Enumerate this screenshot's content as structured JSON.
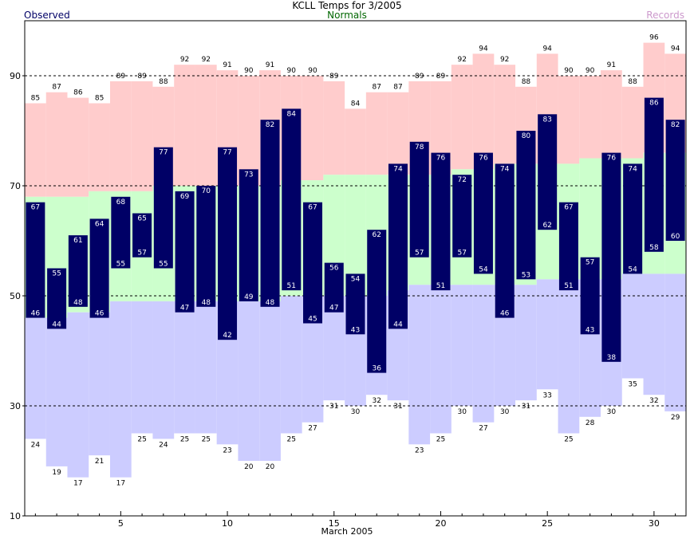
{
  "header": {
    "title": "KCLL Temps for 3/2005",
    "observed_label": "Observed",
    "normals_label": "Normals",
    "records_label": "Records"
  },
  "colors": {
    "observed": "#000066",
    "observed_text": "#ffffff",
    "record_band": "#ffcccc",
    "normal_band": "#ccffcc",
    "record_low_band": "#ccccff",
    "observed_label": "#000066",
    "normals_label": "#006600",
    "records_label": "#cc99cc"
  },
  "chart_data": {
    "type": "bar",
    "title": "KCLL Temps for 3/2005",
    "xlabel": "March 2005",
    "ylabel": "",
    "ylim": [
      10,
      100
    ],
    "xlim": [
      0.5,
      31.5
    ],
    "y_ticks": [
      10,
      30,
      50,
      70,
      90
    ],
    "y_gridlines": [
      30,
      50,
      70,
      90
    ],
    "x_ticks": [
      5,
      10,
      15,
      20,
      25,
      30
    ],
    "days": [
      1,
      2,
      3,
      4,
      5,
      6,
      7,
      8,
      9,
      10,
      11,
      12,
      13,
      14,
      15,
      16,
      17,
      18,
      19,
      20,
      21,
      22,
      23,
      24,
      25,
      26,
      27,
      28,
      29,
      30,
      31
    ],
    "series": [
      {
        "name": "Records",
        "high": [
          85,
          87,
          86,
          85,
          89,
          89,
          88,
          92,
          92,
          91,
          90,
          91,
          90,
          90,
          89,
          84,
          87,
          87,
          89,
          89,
          92,
          94,
          92,
          88,
          94,
          90,
          90,
          91,
          88,
          96,
          94
        ],
        "low": [
          24,
          19,
          17,
          21,
          17,
          25,
          24,
          25,
          25,
          23,
          20,
          20,
          25,
          27,
          31,
          30,
          32,
          31,
          23,
          25,
          30,
          27,
          30,
          31,
          33,
          25,
          28,
          30,
          35,
          32,
          29
        ]
      },
      {
        "name": "Normals",
        "high": [
          68,
          68,
          68,
          69,
          69,
          69,
          70,
          70,
          70,
          70,
          70,
          70,
          71,
          71,
          72,
          72,
          72,
          72,
          72,
          72,
          73,
          73,
          74,
          74,
          74,
          74,
          75,
          75,
          75,
          76,
          76
        ],
        "low": [
          46,
          46,
          47,
          47,
          49,
          49,
          49,
          49,
          49,
          49,
          49,
          49,
          50,
          50,
          50,
          50,
          50,
          51,
          52,
          52,
          52,
          52,
          52,
          52,
          53,
          53,
          53,
          53,
          54,
          54,
          54
        ]
      },
      {
        "name": "Observed",
        "high": [
          67,
          55,
          61,
          64,
          68,
          65,
          77,
          69,
          70,
          77,
          73,
          82,
          84,
          67,
          56,
          54,
          62,
          74,
          78,
          76,
          72,
          76,
          74,
          80,
          83,
          67,
          57,
          76,
          74,
          86,
          82
        ],
        "low": [
          46,
          44,
          48,
          46,
          55,
          57,
          55,
          47,
          48,
          42,
          49,
          48,
          51,
          45,
          47,
          43,
          36,
          44,
          57,
          51,
          57,
          54,
          46,
          53,
          62,
          51,
          43,
          38,
          54,
          58,
          60
        ]
      }
    ]
  }
}
